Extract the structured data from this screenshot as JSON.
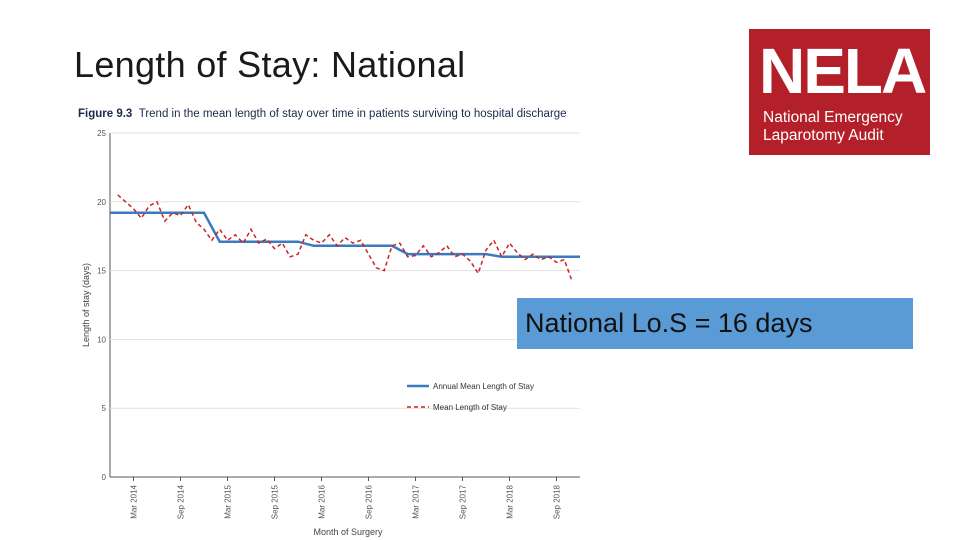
{
  "slide": {
    "title": "Length of Stay: National"
  },
  "logo": {
    "acronym": "NELA",
    "line1": "National Emergency",
    "line2": "Laparotomy Audit"
  },
  "figure": {
    "number": "Figure 9.3",
    "caption": "Trend in the mean length of stay over time in patients surviving to hospital discharge"
  },
  "callout": {
    "text": "National Lo.S = 16 days"
  },
  "colors": {
    "annual": "#3a7abf",
    "monthly": "#cc2222",
    "logo_bg": "#b3202a",
    "callout_bg": "#5b9bd5"
  },
  "chart_data": {
    "type": "line",
    "title": "Trend in the mean length of stay over time in patients surviving to hospital discharge",
    "xlabel": "Month of Surgery",
    "ylabel": "Length of stay (days)",
    "ylim": [
      0,
      25
    ],
    "yticks": [
      0,
      5,
      10,
      15,
      20,
      25
    ],
    "xlim": [
      "Dec 2013",
      "Dec 2018"
    ],
    "xticks": [
      "Mar 2014",
      "Sep 2014",
      "Mar 2015",
      "Sep 2015",
      "Mar 2016",
      "Sep 2016",
      "Mar 2017",
      "Sep 2017",
      "Mar 2018",
      "Sep 2018"
    ],
    "grid": "horizontal",
    "legend_position": "bottom-right",
    "series": [
      {
        "name": "Annual Mean Length of Stay",
        "style": "solid",
        "points": [
          [
            "Dec 2013",
            19.2
          ],
          [
            "Dec 2014",
            19.2
          ],
          [
            "Feb 2015",
            17.1
          ],
          [
            "Dec 2015",
            17.1
          ],
          [
            "Feb 2016",
            16.8
          ],
          [
            "Dec 2016",
            16.8
          ],
          [
            "Feb 2017",
            16.2
          ],
          [
            "Dec 2017",
            16.2
          ],
          [
            "Feb 2018",
            16.0
          ],
          [
            "Dec 2018",
            16.0
          ]
        ]
      },
      {
        "name": "Mean Length of Stay",
        "style": "dashed",
        "points": [
          [
            "Jan 2014",
            20.5
          ],
          [
            "Feb 2014",
            20.0
          ],
          [
            "Mar 2014",
            19.5
          ],
          [
            "Apr 2014",
            18.8
          ],
          [
            "May 2014",
            19.7
          ],
          [
            "Jun 2014",
            20.0
          ],
          [
            "Jul 2014",
            18.6
          ],
          [
            "Aug 2014",
            19.2
          ],
          [
            "Sep 2014",
            19.0
          ],
          [
            "Oct 2014",
            19.8
          ],
          [
            "Nov 2014",
            18.5
          ],
          [
            "Dec 2014",
            18.0
          ],
          [
            "Jan 2015",
            17.2
          ],
          [
            "Feb 2015",
            18.0
          ],
          [
            "Mar 2015",
            17.2
          ],
          [
            "Apr 2015",
            17.6
          ],
          [
            "May 2015",
            17.0
          ],
          [
            "Jun 2015",
            18.0
          ],
          [
            "Jul 2015",
            17.0
          ],
          [
            "Aug 2015",
            17.3
          ],
          [
            "Sep 2015",
            16.6
          ],
          [
            "Oct 2015",
            17.0
          ],
          [
            "Nov 2015",
            16.0
          ],
          [
            "Dec 2015",
            16.2
          ],
          [
            "Jan 2016",
            17.6
          ],
          [
            "Feb 2016",
            17.2
          ],
          [
            "Mar 2016",
            17.0
          ],
          [
            "Apr 2016",
            17.6
          ],
          [
            "May 2016",
            16.8
          ],
          [
            "Jun 2016",
            17.4
          ],
          [
            "Jul 2016",
            17.0
          ],
          [
            "Aug 2016",
            17.2
          ],
          [
            "Sep 2016",
            16.2
          ],
          [
            "Oct 2016",
            15.2
          ],
          [
            "Nov 2016",
            15.0
          ],
          [
            "Dec 2016",
            16.8
          ],
          [
            "Jan 2017",
            17.0
          ],
          [
            "Feb 2017",
            16.0
          ],
          [
            "Mar 2017",
            16.1
          ],
          [
            "Apr 2017",
            16.8
          ],
          [
            "May 2017",
            16.0
          ],
          [
            "Jun 2017",
            16.3
          ],
          [
            "Jul 2017",
            16.8
          ],
          [
            "Aug 2017",
            16.0
          ],
          [
            "Sep 2017",
            16.2
          ],
          [
            "Oct 2017",
            15.7
          ],
          [
            "Nov 2017",
            14.8
          ],
          [
            "Dec 2017",
            16.5
          ],
          [
            "Jan 2018",
            17.2
          ],
          [
            "Feb 2018",
            16.0
          ],
          [
            "Mar 2018",
            17.0
          ],
          [
            "Apr 2018",
            16.3
          ],
          [
            "May 2018",
            15.8
          ],
          [
            "Jun 2018",
            16.2
          ],
          [
            "Jul 2018",
            15.8
          ],
          [
            "Aug 2018",
            16.0
          ],
          [
            "Sep 2018",
            15.6
          ],
          [
            "Oct 2018",
            15.8
          ],
          [
            "Nov 2018",
            14.2
          ]
        ]
      }
    ]
  }
}
